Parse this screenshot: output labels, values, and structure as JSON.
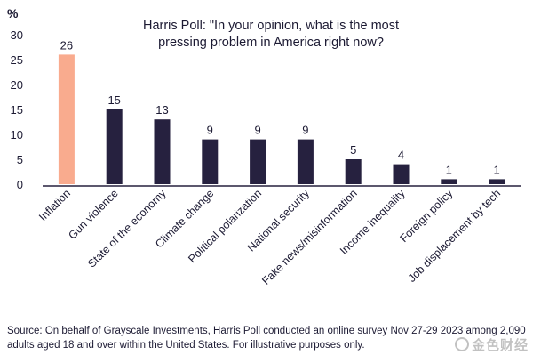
{
  "chart_data": {
    "type": "bar",
    "title_lines": [
      "Harris Poll: \"In your opinion, what is the most",
      "pressing problem in America right now?"
    ],
    "ylabel": "%",
    "xlabel": "",
    "ylim": [
      0,
      30
    ],
    "yticks": [
      0,
      5,
      10,
      15,
      20,
      25,
      30
    ],
    "grid": false,
    "categories": [
      "Inflation",
      "Gun violence",
      "State of the economy",
      "Climate change",
      "Political polarization",
      "National security",
      "Fake news/misinformation",
      "Income inequality",
      "Foreign policy",
      "Job displacement by tech"
    ],
    "values": [
      26,
      15,
      13,
      9,
      9,
      9,
      5,
      4,
      1,
      1
    ],
    "colors": {
      "highlight": "#f9ab8e",
      "bar": "#26213f",
      "axis": "#26213f",
      "text": "#1c1a33"
    },
    "highlight_index": 0
  },
  "source_text": "Source: On behalf of Grayscale Investments, Harris Poll conducted an online survey Nov 27-29 2023 among 2,090 adults aged 18 and over within the United States. For illustrative purposes only.",
  "watermark": {
    "text": "金色财经"
  }
}
